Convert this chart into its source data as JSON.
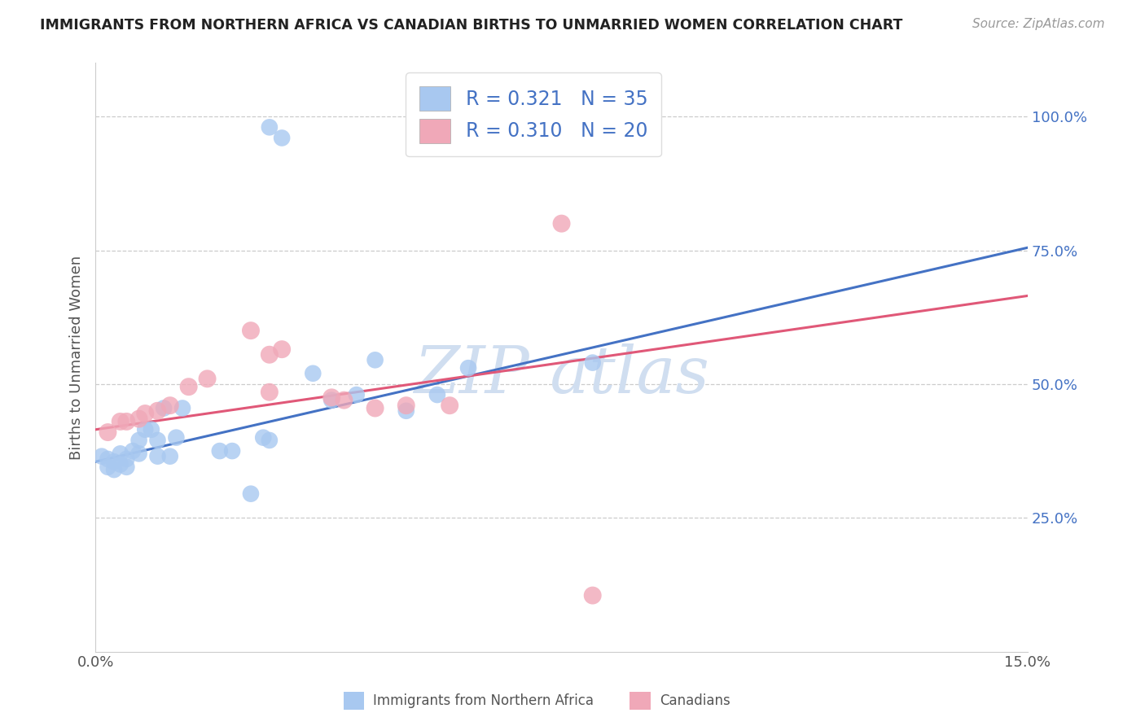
{
  "title": "IMMIGRANTS FROM NORTHERN AFRICA VS CANADIAN BIRTHS TO UNMARRIED WOMEN CORRELATION CHART",
  "source": "Source: ZipAtlas.com",
  "ylabel": "Births to Unmarried Women",
  "xlim": [
    0.0,
    0.15
  ],
  "ylim": [
    0.0,
    1.1
  ],
  "xtick_labels": [
    "0.0%",
    "15.0%"
  ],
  "xtick_values": [
    0.0,
    0.15
  ],
  "ytick_labels": [
    "25.0%",
    "50.0%",
    "75.0%",
    "100.0%"
  ],
  "ytick_values": [
    0.25,
    0.5,
    0.75,
    1.0
  ],
  "blue_color": "#A8C8F0",
  "pink_color": "#F0A8B8",
  "blue_line_color": "#4472C4",
  "pink_line_color": "#E05878",
  "watermark_color": "#D0DEF0",
  "blue_line_x": [
    0.0,
    0.15
  ],
  "blue_line_y": [
    0.355,
    0.755
  ],
  "pink_line_x": [
    0.0,
    0.15
  ],
  "pink_line_y": [
    0.415,
    0.665
  ],
  "blue_scatter": [
    [
      0.001,
      0.365
    ],
    [
      0.002,
      0.345
    ],
    [
      0.002,
      0.36
    ],
    [
      0.003,
      0.34
    ],
    [
      0.003,
      0.355
    ],
    [
      0.004,
      0.37
    ],
    [
      0.004,
      0.35
    ],
    [
      0.005,
      0.36
    ],
    [
      0.005,
      0.345
    ],
    [
      0.006,
      0.375
    ],
    [
      0.007,
      0.395
    ],
    [
      0.007,
      0.37
    ],
    [
      0.008,
      0.415
    ],
    [
      0.009,
      0.415
    ],
    [
      0.01,
      0.365
    ],
    [
      0.01,
      0.395
    ],
    [
      0.011,
      0.455
    ],
    [
      0.012,
      0.365
    ],
    [
      0.013,
      0.4
    ],
    [
      0.014,
      0.455
    ],
    [
      0.02,
      0.375
    ],
    [
      0.022,
      0.375
    ],
    [
      0.025,
      0.295
    ],
    [
      0.027,
      0.4
    ],
    [
      0.028,
      0.395
    ],
    [
      0.028,
      0.98
    ],
    [
      0.03,
      0.96
    ],
    [
      0.035,
      0.52
    ],
    [
      0.038,
      0.47
    ],
    [
      0.042,
      0.48
    ],
    [
      0.045,
      0.545
    ],
    [
      0.05,
      0.45
    ],
    [
      0.055,
      0.48
    ],
    [
      0.06,
      0.53
    ],
    [
      0.08,
      0.54
    ]
  ],
  "pink_scatter": [
    [
      0.002,
      0.41
    ],
    [
      0.004,
      0.43
    ],
    [
      0.005,
      0.43
    ],
    [
      0.007,
      0.435
    ],
    [
      0.008,
      0.445
    ],
    [
      0.01,
      0.45
    ],
    [
      0.012,
      0.46
    ],
    [
      0.015,
      0.495
    ],
    [
      0.018,
      0.51
    ],
    [
      0.025,
      0.6
    ],
    [
      0.028,
      0.555
    ],
    [
      0.028,
      0.485
    ],
    [
      0.03,
      0.565
    ],
    [
      0.038,
      0.475
    ],
    [
      0.04,
      0.47
    ],
    [
      0.045,
      0.455
    ],
    [
      0.05,
      0.46
    ],
    [
      0.057,
      0.46
    ],
    [
      0.075,
      0.8
    ],
    [
      0.08,
      0.105
    ]
  ],
  "blue_marker_size": 220,
  "pink_marker_size": 250,
  "grid_color": "#CCCCCC",
  "bg_color": "#FFFFFF",
  "legend_r1": "R = 0.321",
  "legend_n1": "N = 35",
  "legend_r2": "R = 0.310",
  "legend_n2": "N = 20"
}
